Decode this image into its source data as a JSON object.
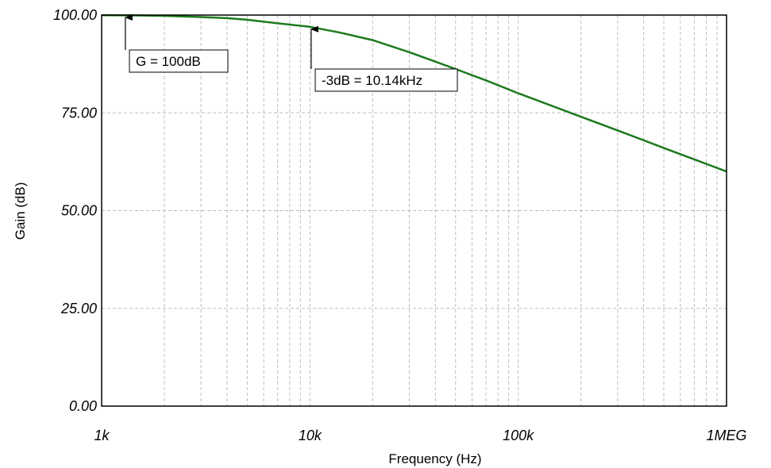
{
  "chart_data": {
    "type": "line",
    "title": "",
    "xlabel": "Frequency (Hz)",
    "ylabel": "Gain (dB)",
    "x_scale": "log",
    "xlim": [
      1000,
      1000000
    ],
    "ylim": [
      0,
      100
    ],
    "grid": true,
    "x_ticks": [
      {
        "value": 1000,
        "label": "1k"
      },
      {
        "value": 10000,
        "label": "10k"
      },
      {
        "value": 100000,
        "label": "100k"
      },
      {
        "value": 1000000,
        "label": "1MEG"
      }
    ],
    "y_ticks": [
      {
        "value": 0,
        "label": "0.00"
      },
      {
        "value": 25,
        "label": "25.00"
      },
      {
        "value": 50,
        "label": "50.00"
      },
      {
        "value": 75,
        "label": "75.00"
      },
      {
        "value": 100,
        "label": "100.00"
      }
    ],
    "series": [
      {
        "color": "#1e7a1e",
        "x": [
          1000,
          1500,
          2000,
          3000,
          4000,
          5000,
          7000,
          10000,
          14000,
          20000,
          30000,
          40000,
          50000,
          70000,
          100000,
          140000,
          200000,
          300000,
          400000,
          500000,
          700000,
          1000000
        ],
        "y": [
          99.98,
          99.9,
          99.8,
          99.5,
          99.2,
          98.8,
          97.9,
          97.0,
          95.5,
          93.6,
          90.5,
          88.1,
          86.2,
          83.3,
          80.0,
          77.1,
          74.0,
          70.5,
          68.0,
          66.0,
          63.1,
          60.0
        ]
      }
    ],
    "annotations": [
      {
        "text": "G = 100dB",
        "x": 1300,
        "y": 100
      },
      {
        "text": "-3dB = 10.14kHz",
        "x": 10140,
        "y": 97
      }
    ]
  }
}
